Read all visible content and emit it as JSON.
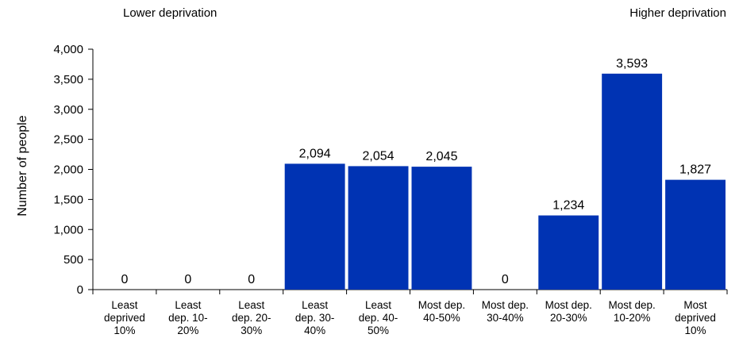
{
  "annotations": {
    "left": "Lower deprivation",
    "right": "Higher deprivation"
  },
  "chart_data": {
    "type": "bar",
    "title": "",
    "xlabel": "",
    "ylabel": "Number of people",
    "ylim": [
      0,
      4000
    ],
    "yticks": [
      "0",
      "500",
      "1,000",
      "1,500",
      "2,000",
      "2,500",
      "3,000",
      "3,500",
      "4,000"
    ],
    "ytick_values": [
      0,
      500,
      1000,
      1500,
      2000,
      2500,
      3000,
      3500,
      4000
    ],
    "categories": [
      [
        "Least",
        "deprived",
        "10%"
      ],
      [
        "Least",
        "dep. 10-",
        "20%"
      ],
      [
        "Least",
        "dep. 20-",
        "30%"
      ],
      [
        "Least",
        "dep. 30-",
        "40%"
      ],
      [
        "Least",
        "dep. 40-",
        "50%"
      ],
      [
        "Most dep.",
        "40-50%"
      ],
      [
        "Most dep.",
        "30-40%"
      ],
      [
        "Most dep.",
        "20-30%"
      ],
      [
        "Most dep.",
        "10-20%"
      ],
      [
        "Most",
        "deprived",
        "10%"
      ]
    ],
    "values": [
      0,
      0,
      0,
      2094,
      2054,
      2045,
      0,
      1234,
      3593,
      1827
    ],
    "value_labels": [
      "0",
      "0",
      "0",
      "2,094",
      "2,054",
      "2,045",
      "0",
      "1,234",
      "3,593",
      "1,827"
    ],
    "bar_color": "#0033b3",
    "grid": false,
    "legend": false
  }
}
